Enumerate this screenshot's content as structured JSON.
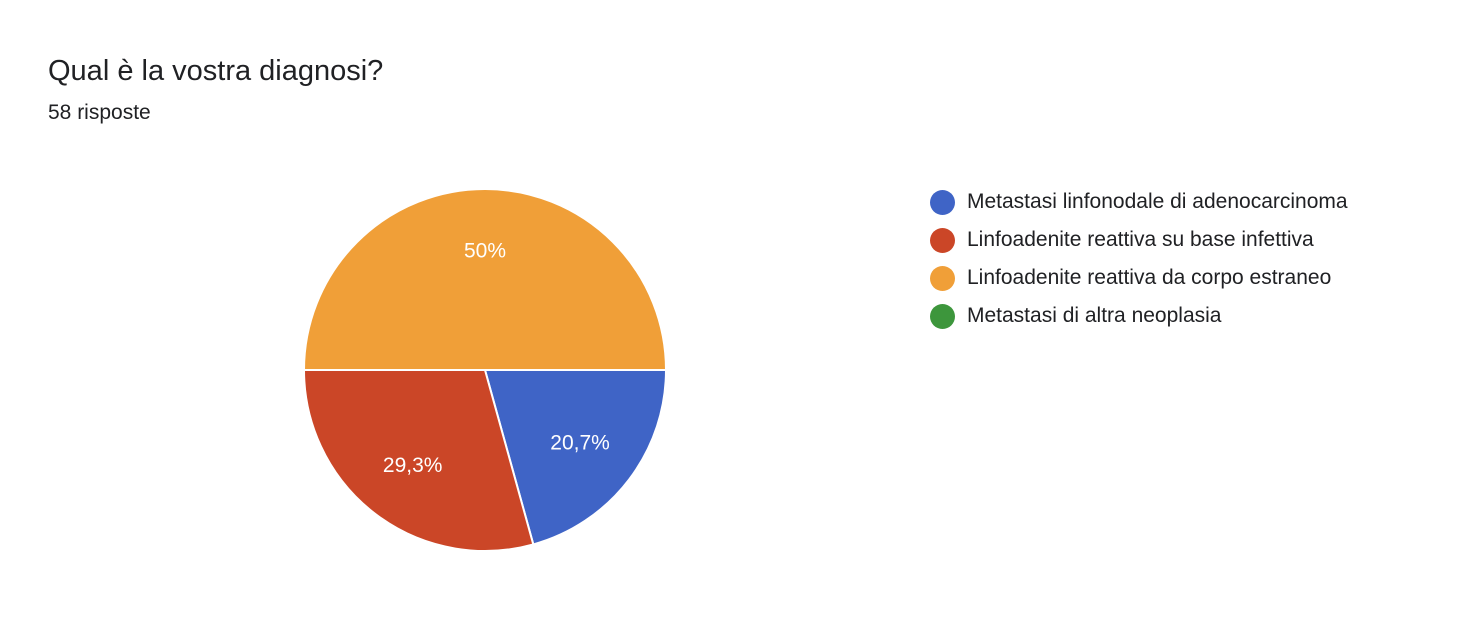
{
  "header": {
    "title": "Qual è la vostra diagnosi?",
    "subtitle": "58 risposte"
  },
  "chart_data": {
    "type": "pie",
    "total_responses": 58,
    "slices": [
      {
        "name": "Metastasi linfonodale di adenocarcinoma",
        "value": 20.7,
        "label": "20,7%",
        "color": "#3F64C6"
      },
      {
        "name": "Linfoadenite reattiva su base infettiva",
        "value": 29.3,
        "label": "29,3%",
        "color": "#CB4627"
      },
      {
        "name": "Linfoadenite reattiva da corpo estraneo",
        "value": 50,
        "label": "50%",
        "color": "#F09F38"
      },
      {
        "name": "Metastasi di altra neoplasia",
        "value": 0,
        "label": "",
        "color": "#3D963C"
      }
    ],
    "legend_position": "right"
  }
}
